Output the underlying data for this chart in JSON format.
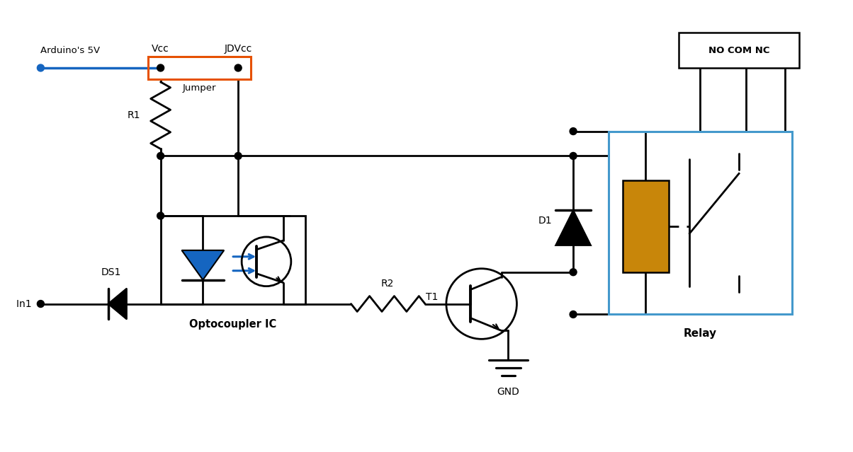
{
  "bg_color": "#ffffff",
  "line_color": "#000000",
  "blue_color": "#1565C0",
  "orange_color": "#E65100",
  "relay_box_color": "#4499CC",
  "coil_color": "#C8860A",
  "labels": {
    "arduino": "Arduino's 5V",
    "vcc": "Vcc",
    "jdvcc": "JDVcc",
    "jumper": "Jumper",
    "r1": "R1",
    "ds1": "DS1",
    "in1": "In1",
    "optocoupler": "Optocoupler IC",
    "r2": "R2",
    "t1": "T1",
    "d1": "D1",
    "relay": "Relay",
    "gnd": "GND",
    "nocomnc": "NO COM NC"
  }
}
